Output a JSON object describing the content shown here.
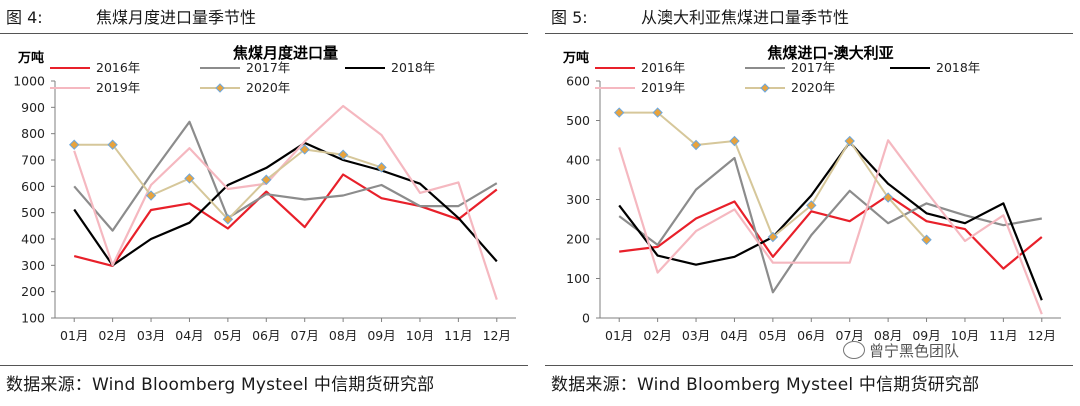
{
  "watermark": "曾宁黑色团队",
  "panels": [
    {
      "figure_label": "图 4:",
      "figure_title": "焦煤月度进口量季节性",
      "source": "数据来源：Wind Bloomberg Mysteel 中信期货研究部",
      "chart_data": {
        "type": "line",
        "title": "焦煤月度进口量",
        "ylabel": "万吨",
        "xlabel": "",
        "ylim": [
          100,
          1000
        ],
        "yticks": [
          100,
          200,
          300,
          400,
          500,
          600,
          700,
          800,
          900,
          1000
        ],
        "categories": [
          "01月",
          "02月",
          "03月",
          "04月",
          "05月",
          "06月",
          "07月",
          "08月",
          "09月",
          "10月",
          "11月",
          "12月"
        ],
        "grid": false,
        "legend": "top",
        "series": [
          {
            "name": "2016年",
            "color": "#e8202a",
            "marker": false,
            "values": [
              335,
              298,
              510,
              535,
              440,
              580,
              445,
              645,
              555,
              525,
              475,
              588
            ]
          },
          {
            "name": "2017年",
            "color": "#8c8c8c",
            "marker": false,
            "values": [
              600,
              432,
              645,
              845,
              480,
              570,
              550,
              565,
              605,
              525,
              525,
              612
            ]
          },
          {
            "name": "2018年",
            "color": "#000000",
            "marker": false,
            "values": [
              512,
              300,
              400,
              462,
              605,
              670,
              765,
              700,
              660,
              610,
              480,
              315
            ]
          },
          {
            "name": "2019年",
            "color": "#f5b8c0",
            "marker": false,
            "values": [
              735,
              300,
              605,
              745,
              590,
              610,
              770,
              905,
              795,
              575,
              615,
              170
            ]
          },
          {
            "name": "2020年",
            "color": "#d6c79a",
            "marker": true,
            "values": [
              758,
              758,
              565,
              630,
              475,
              625,
              740,
              720,
              672,
              null,
              null,
              null
            ]
          }
        ]
      }
    },
    {
      "figure_label": "图 5:",
      "figure_title": "从澳大利亚焦煤进口量季节性",
      "source": "数据来源：Wind Bloomberg Mysteel 中信期货研究部",
      "chart_data": {
        "type": "line",
        "title": "焦煤进口-澳大利亚",
        "ylabel": "万吨",
        "xlabel": "",
        "ylim": [
          0,
          600
        ],
        "yticks": [
          0,
          100,
          200,
          300,
          400,
          500,
          600
        ],
        "categories": [
          "01月",
          "02月",
          "03月",
          "04月",
          "05月",
          "06月",
          "07月",
          "08月",
          "09月",
          "10月",
          "11月",
          "12月"
        ],
        "grid": false,
        "legend": "top",
        "series": [
          {
            "name": "2016年",
            "color": "#e8202a",
            "marker": false,
            "values": [
              168,
              180,
              252,
              295,
              155,
              270,
              245,
              310,
              245,
              225,
              125,
              205
            ]
          },
          {
            "name": "2017年",
            "color": "#8c8c8c",
            "marker": false,
            "values": [
              258,
              185,
              325,
              405,
              65,
              210,
              322,
              240,
              290,
              260,
              235,
              252
            ]
          },
          {
            "name": "2018年",
            "color": "#000000",
            "marker": false,
            "values": [
              285,
              158,
              135,
              155,
              205,
              310,
              445,
              340,
              265,
              240,
              290,
              45
            ]
          },
          {
            "name": "2019年",
            "color": "#f5b8c0",
            "marker": false,
            "values": [
              432,
              115,
              220,
              275,
              140,
              140,
              140,
              450,
              320,
              195,
              260,
              10
            ]
          },
          {
            "name": "2020年",
            "color": "#d6c79a",
            "marker": true,
            "values": [
              520,
              520,
              438,
              448,
              205,
              285,
              448,
              305,
              198,
              null,
              null,
              null
            ]
          }
        ]
      }
    }
  ]
}
